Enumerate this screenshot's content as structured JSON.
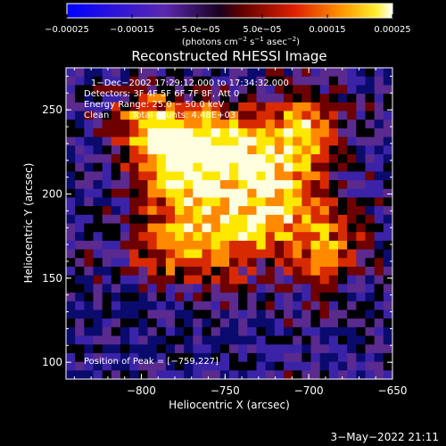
{
  "chart_data": {
    "type": "heatmap",
    "title": "Reconstructed RHESSI Image",
    "xlabel": "Heliocentric X (arcsec)",
    "ylabel": "Heliocentric Y (arcsec)",
    "xlim": [
      -845,
      -650
    ],
    "ylim": [
      90,
      275
    ],
    "x_ticks": [
      {
        "value": -800,
        "label": "−800"
      },
      {
        "value": -750,
        "label": "−750"
      },
      {
        "value": -700,
        "label": "−700"
      },
      {
        "value": -650,
        "label": "−650"
      }
    ],
    "y_ticks": [
      {
        "value": 100,
        "label": "100"
      },
      {
        "value": 150,
        "label": "150"
      },
      {
        "value": 200,
        "label": "200"
      },
      {
        "value": 250,
        "label": "250"
      }
    ],
    "colorbar": {
      "range": [
        -0.00025,
        0.00025
      ],
      "tick_labels": [
        "−0.00025",
        "−0.00015",
        "−5.0e−05",
        "5.0e−05",
        "0.00015",
        "0.00025"
      ],
      "tick_values": [
        -0.00025,
        -0.00015,
        -5e-05,
        5e-05,
        0.00015,
        0.00025
      ],
      "unit_parts": [
        "(photons cm",
        "−2",
        " s",
        "−1",
        " asec",
        "−2",
        ")"
      ]
    },
    "annotations": {
      "time_range": "1−Dec−2002 17:29:12.000 to 17:34:32.000",
      "detectors": "Detectors: 3F 4F 5F 6F 7F 8F, Att 0",
      "energy_range": "Energy Range: 25.0 − 50.0 keV",
      "method": "Clean",
      "total_counts": "Total counts: 4.48E+03",
      "peak_position": "Position of Peak = [−759,227]"
    },
    "peak": {
      "x": -759,
      "y": 227
    },
    "colors": {
      "negative_dark": "#0b0b6e",
      "negative_mid": "#3b23a8",
      "negative_purple": "#5a2a8e",
      "zero": "#000000",
      "positive_low": "#6e0000",
      "positive_mid": "#d82a00",
      "positive_orange": "#ff8a00",
      "positive_high": "#ffe800",
      "positive_max": "#ffffe0"
    }
  },
  "footer": {
    "timestamp": "3−May−2022 21:11"
  }
}
